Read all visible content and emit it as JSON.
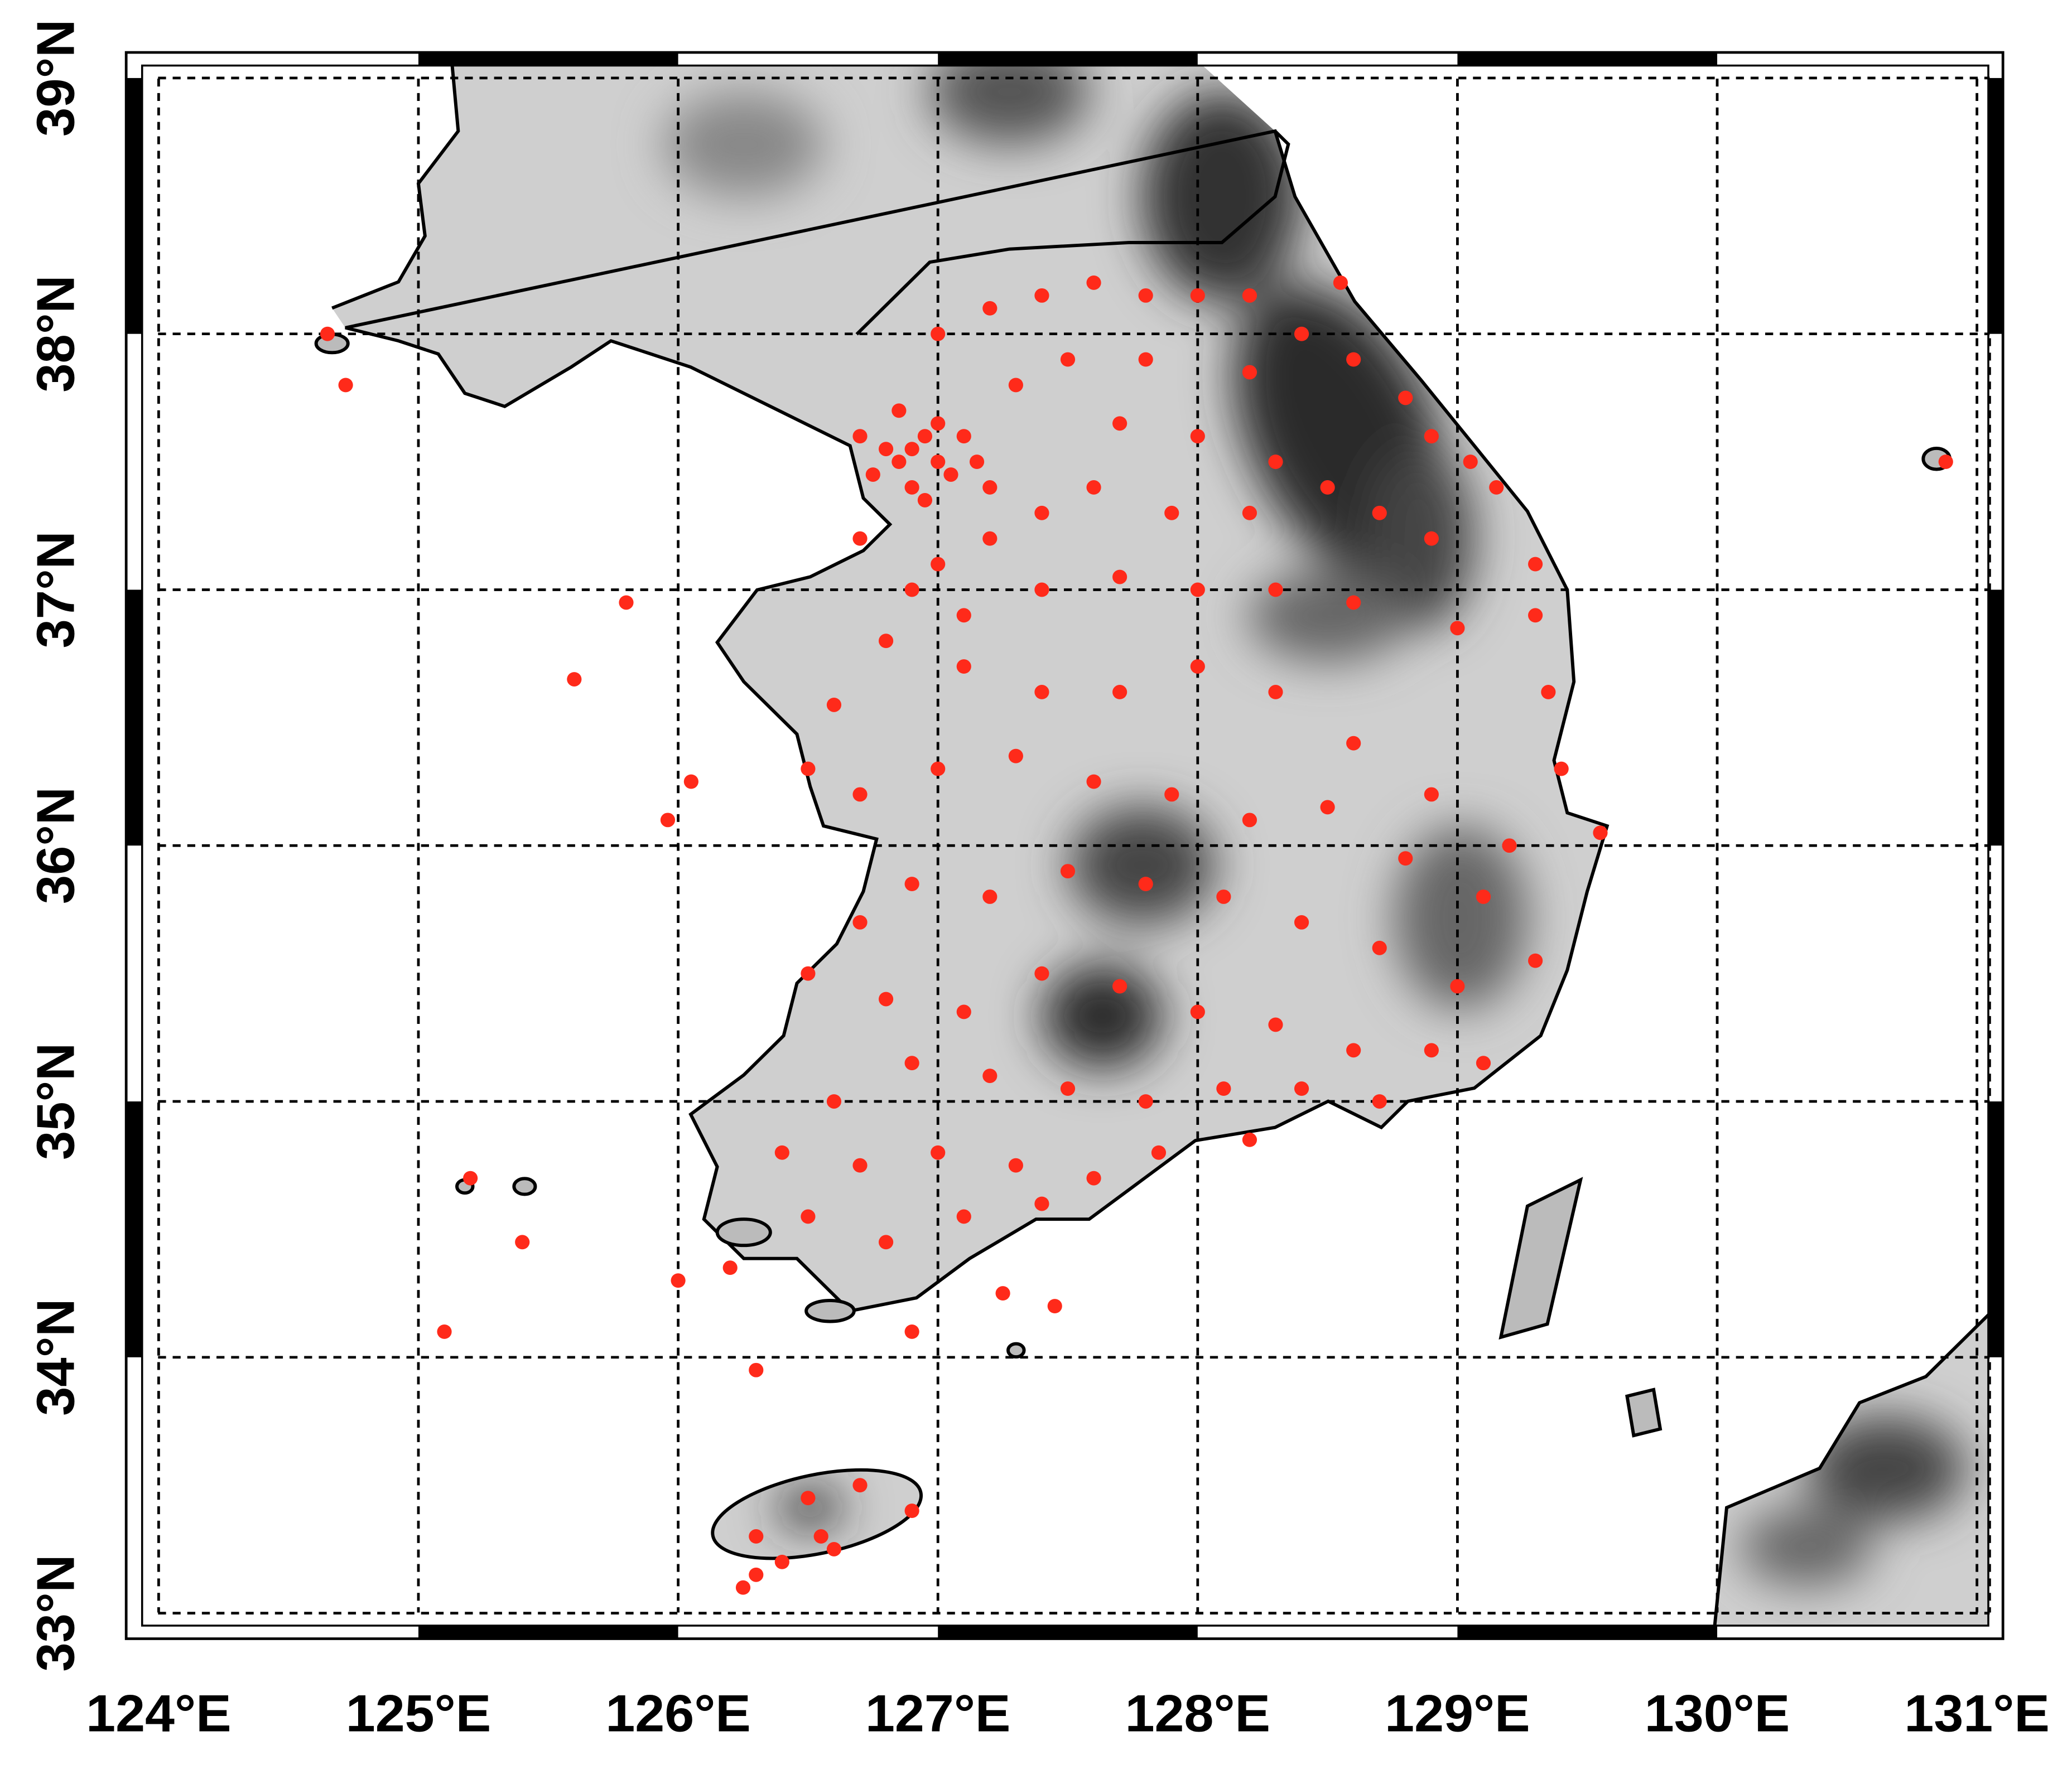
{
  "chart_data": {
    "type": "scatter",
    "color": "#ff2a1a",
    "grid": true,
    "xlim": [
      123.875,
      131.1
    ],
    "ylim": [
      32.9,
      39.1
    ],
    "xticks": [
      {
        "value": 124,
        "label": "124°E"
      },
      {
        "value": 125,
        "label": "125°E"
      },
      {
        "value": 126,
        "label": "126°E"
      },
      {
        "value": 127,
        "label": "127°E"
      },
      {
        "value": 128,
        "label": "128°E"
      },
      {
        "value": 129,
        "label": "129°E"
      },
      {
        "value": 130,
        "label": "130°E"
      },
      {
        "value": 131,
        "label": "131°E"
      }
    ],
    "yticks": [
      {
        "value": 33,
        "label": "33°N"
      },
      {
        "value": 34,
        "label": "34°N"
      },
      {
        "value": 35,
        "label": "35°N"
      },
      {
        "value": 36,
        "label": "36°N"
      },
      {
        "value": 37,
        "label": "37°N"
      },
      {
        "value": 38,
        "label": "38°N"
      },
      {
        "value": 39,
        "label": "39°N"
      }
    ],
    "x": [
      126.9,
      127.0,
      126.95,
      127.05,
      126.85,
      127.1,
      126.8,
      126.9,
      127.0,
      126.75,
      127.15,
      126.7,
      126.95,
      127.2,
      126.85,
      127.0,
      127.2,
      127.4,
      127.6,
      127.8,
      128.0,
      128.2,
      128.4,
      128.55,
      128.6,
      128.8,
      128.9,
      129.05,
      129.15,
      129.3,
      128.2,
      127.8,
      127.5,
      127.3,
      127.7,
      128.0,
      128.3,
      128.5,
      128.7,
      128.9,
      128.2,
      127.9,
      127.6,
      127.4,
      127.2,
      127.0,
      126.7,
      126.9,
      127.1,
      127.4,
      127.7,
      128.0,
      128.3,
      128.6,
      129.0,
      129.3,
      129.35,
      129.4,
      129.55,
      129.2,
      128.9,
      128.6,
      128.3,
      128.0,
      127.7,
      127.4,
      127.1,
      126.8,
      126.6,
      126.5,
      126.7,
      127.0,
      127.3,
      127.6,
      127.9,
      128.2,
      128.5,
      128.8,
      129.1,
      129.3,
      129.0,
      128.7,
      128.4,
      128.1,
      127.8,
      127.5,
      127.2,
      126.9,
      126.7,
      126.5,
      126.8,
      127.1,
      127.4,
      127.7,
      128.0,
      128.3,
      128.6,
      128.9,
      129.1,
      128.7,
      128.4,
      128.1,
      127.8,
      127.5,
      127.2,
      126.9,
      126.6,
      126.4,
      126.7,
      127.0,
      127.3,
      127.6,
      127.85,
      128.2,
      126.5,
      126.8,
      127.1,
      127.4,
      126.2,
      126.9,
      127.25,
      127.45,
      125.6,
      125.8,
      124.65,
      124.72,
      125.2,
      125.4,
      125.1,
      126.0,
      126.3,
      125.96,
      126.05,
      130.88,
      126.3,
      126.5,
      126.7,
      126.9,
      126.55,
      126.4,
      126.6,
      126.3,
      126.25
    ],
    "values": [
      37.55,
      37.5,
      37.6,
      37.45,
      37.5,
      37.6,
      37.55,
      37.4,
      37.65,
      37.45,
      37.5,
      37.6,
      37.35,
      37.4,
      37.7,
      38.0,
      38.1,
      38.15,
      38.2,
      38.15,
      38.15,
      38.15,
      38.0,
      38.2,
      37.9,
      37.75,
      37.6,
      37.5,
      37.4,
      37.1,
      37.85,
      37.9,
      37.9,
      37.8,
      37.65,
      37.6,
      37.5,
      37.4,
      37.3,
      37.2,
      37.3,
      37.3,
      37.4,
      37.3,
      37.2,
      37.1,
      37.2,
      37.0,
      36.9,
      37.0,
      37.05,
      37.0,
      37.0,
      36.95,
      36.85,
      36.9,
      36.6,
      36.3,
      36.05,
      36.0,
      36.2,
      36.4,
      36.6,
      36.7,
      36.6,
      36.6,
      36.7,
      36.8,
      36.55,
      36.3,
      36.2,
      36.3,
      36.35,
      36.25,
      36.2,
      36.1,
      36.15,
      35.95,
      35.8,
      35.55,
      35.45,
      35.6,
      35.7,
      35.8,
      35.85,
      35.9,
      35.8,
      35.85,
      35.7,
      35.5,
      35.4,
      35.35,
      35.5,
      35.45,
      35.35,
      35.3,
      35.2,
      35.2,
      35.15,
      35.0,
      35.05,
      35.05,
      35.0,
      35.05,
      35.1,
      35.15,
      35.0,
      34.8,
      34.75,
      34.8,
      34.75,
      34.7,
      34.8,
      34.85,
      34.55,
      34.45,
      34.55,
      34.6,
      34.35,
      34.1,
      34.25,
      34.2,
      36.65,
      36.95,
      38.0,
      37.8,
      34.7,
      34.45,
      34.1,
      34.3,
      33.95,
      36.1,
      36.25,
      37.5,
      33.3,
      33.45,
      33.5,
      33.4,
      33.3,
      33.2,
      33.25,
      33.15,
      33.1
    ]
  }
}
